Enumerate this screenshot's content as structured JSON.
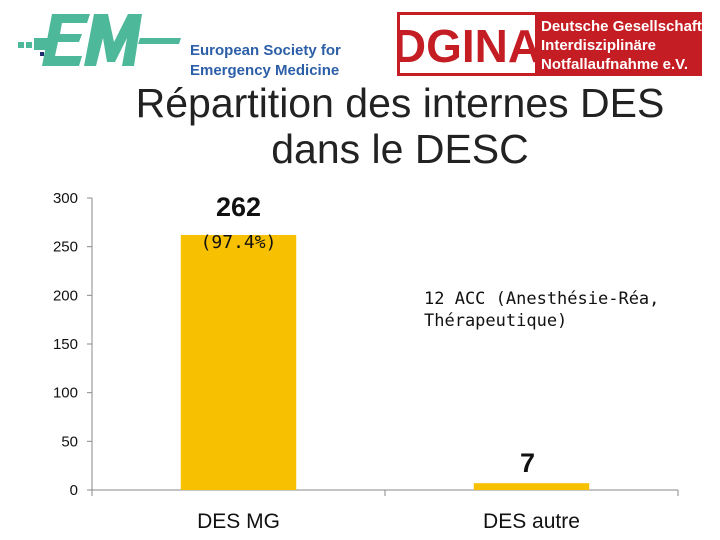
{
  "header": {
    "eusem": {
      "line1": "European Society for",
      "line2": "Emergency Medicine",
      "colors": {
        "green": "#4db89a",
        "navy": "#1f2f6e",
        "text": "#2c5fa8"
      }
    },
    "dgina": {
      "acronym": "DGINA",
      "line1": "Deutsche Gesellschaft",
      "line2": "Interdisziplinäre",
      "line3": "Notfallaufnahme e.V.",
      "colors": {
        "red": "#c41e24",
        "white": "#ffffff"
      }
    }
  },
  "title": {
    "line1": "Répartition des internes DES",
    "line2": "dans le DESC"
  },
  "chart_data": {
    "type": "bar",
    "categories": [
      "DES MG",
      "DES autre"
    ],
    "values": [
      262,
      7
    ],
    "ylim": [
      0,
      300
    ],
    "yticks": [
      0,
      50,
      100,
      150,
      200,
      250,
      300
    ],
    "grid": false,
    "bar_color": "#f7c000",
    "data_labels": [
      {
        "value": "262",
        "sub": "(97.4%)"
      },
      {
        "value": "7",
        "sub": ""
      }
    ],
    "annotation": {
      "line1": "12 ACC (Anesthésie-Réa,",
      "line2": "Thérapeutique)"
    }
  }
}
